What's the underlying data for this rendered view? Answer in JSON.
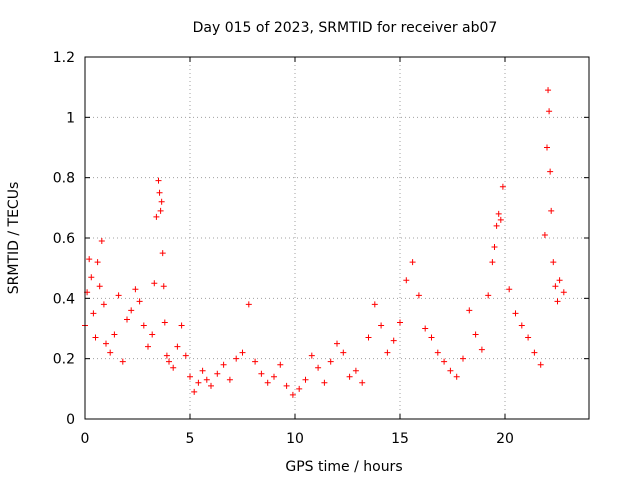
{
  "chart_data": {
    "type": "scatter",
    "title": "Day 015 of 2023, SRMTID for receiver ab07",
    "xlabel": "GPS time / hours",
    "ylabel": "SRMTID / TECUs",
    "xlim": [
      0,
      24
    ],
    "ylim": [
      0,
      1.2
    ],
    "grid": true,
    "marker": "+",
    "x_ticks": [
      0,
      5,
      10,
      15,
      20
    ],
    "x_tick_labels": [
      "0",
      "5",
      "10",
      "15",
      "20"
    ],
    "y_ticks": [
      0,
      0.2,
      0.4,
      0.6,
      0.8,
      1.0,
      1.2
    ],
    "y_tick_labels": [
      "0",
      "0.2",
      "0.4",
      "0.6",
      "0.8",
      "1",
      "1.2"
    ],
    "series": [
      {
        "name": "ab07",
        "color": "#ff0000",
        "x": [
          0.0,
          0.1,
          0.2,
          0.3,
          0.4,
          0.5,
          0.6,
          0.7,
          0.8,
          0.9,
          1.0,
          1.2,
          1.4,
          1.6,
          1.8,
          2.0,
          2.2,
          2.4,
          2.6,
          2.8,
          3.0,
          3.2,
          3.3,
          3.4,
          3.5,
          3.55,
          3.6,
          3.65,
          3.7,
          3.75,
          3.8,
          3.9,
          4.0,
          4.2,
          4.4,
          4.6,
          4.8,
          5.0,
          5.2,
          5.4,
          5.6,
          5.8,
          6.0,
          6.3,
          6.6,
          6.9,
          7.2,
          7.5,
          7.8,
          8.1,
          8.4,
          8.7,
          9.0,
          9.3,
          9.6,
          9.9,
          10.2,
          10.5,
          10.8,
          11.1,
          11.4,
          11.7,
          12.0,
          12.3,
          12.6,
          12.9,
          13.2,
          13.5,
          13.8,
          14.1,
          14.4,
          14.7,
          15.0,
          15.3,
          15.6,
          15.9,
          16.2,
          16.5,
          16.8,
          17.1,
          17.4,
          17.7,
          18.0,
          18.3,
          18.6,
          18.9,
          19.2,
          19.4,
          19.5,
          19.6,
          19.7,
          19.8,
          19.9,
          20.2,
          20.5,
          20.8,
          21.1,
          21.4,
          21.7,
          21.9,
          22.0,
          22.05,
          22.1,
          22.15,
          22.2,
          22.3,
          22.4,
          22.5,
          22.6,
          22.8
        ],
        "y": [
          0.31,
          0.42,
          0.53,
          0.47,
          0.35,
          0.27,
          0.52,
          0.44,
          0.59,
          0.38,
          0.25,
          0.22,
          0.28,
          0.41,
          0.19,
          0.33,
          0.36,
          0.43,
          0.39,
          0.31,
          0.24,
          0.28,
          0.45,
          0.67,
          0.79,
          0.75,
          0.69,
          0.72,
          0.55,
          0.44,
          0.32,
          0.21,
          0.19,
          0.17,
          0.24,
          0.31,
          0.21,
          0.14,
          0.09,
          0.12,
          0.16,
          0.13,
          0.11,
          0.15,
          0.18,
          0.13,
          0.2,
          0.22,
          0.38,
          0.19,
          0.15,
          0.12,
          0.14,
          0.18,
          0.11,
          0.08,
          0.1,
          0.13,
          0.21,
          0.17,
          0.12,
          0.19,
          0.25,
          0.22,
          0.14,
          0.16,
          0.12,
          0.27,
          0.38,
          0.31,
          0.22,
          0.26,
          0.32,
          0.46,
          0.52,
          0.41,
          0.3,
          0.27,
          0.22,
          0.19,
          0.16,
          0.14,
          0.2,
          0.36,
          0.28,
          0.23,
          0.41,
          0.52,
          0.57,
          0.64,
          0.68,
          0.66,
          0.77,
          0.43,
          0.35,
          0.31,
          0.27,
          0.22,
          0.18,
          0.61,
          0.9,
          1.09,
          1.02,
          0.82,
          0.69,
          0.52,
          0.44,
          0.39,
          0.46,
          0.42
        ]
      }
    ]
  }
}
